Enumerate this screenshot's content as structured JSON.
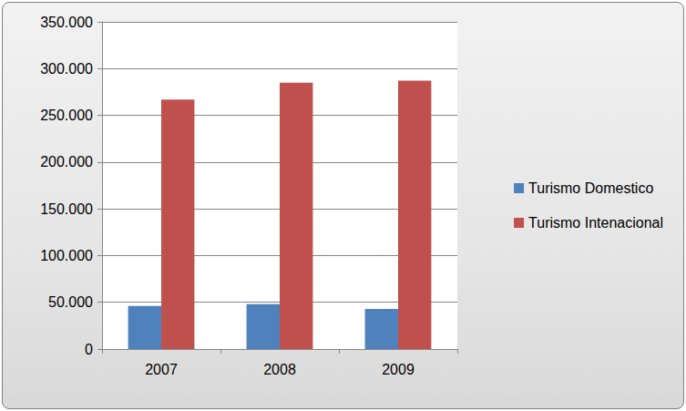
{
  "chart_data": {
    "type": "bar",
    "categories": [
      "2007",
      "2008",
      "2009"
    ],
    "series": [
      {
        "name": "Turismo Domestico",
        "color": "#4f81bd",
        "values": [
          46000,
          48000,
          43000
        ]
      },
      {
        "name": "Turismo Intenacional",
        "color": "#c0504d",
        "values": [
          267000,
          285000,
          287000
        ]
      }
    ],
    "ylim": [
      0,
      350000
    ],
    "yticks": [
      0,
      {
        "value": 50000,
        "label": "50.000"
      },
      {
        "value": 100000,
        "label": "100.000"
      },
      {
        "value": 150000,
        "label": "150.000"
      },
      {
        "value": 200000,
        "label": "200.000"
      },
      {
        "value": 250000,
        "label": "250.000"
      },
      {
        "value": 300000,
        "label": "300.000"
      },
      {
        "value": 350000,
        "label": "350.000"
      }
    ],
    "grid": true,
    "legend": "right"
  }
}
